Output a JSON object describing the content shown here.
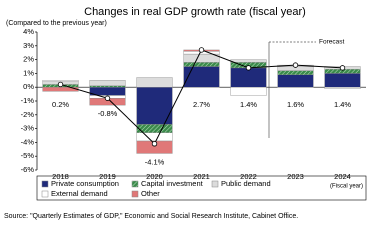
{
  "chart_data": {
    "type": "stacked-bar-line",
    "title": "Changes in real GDP growth rate (fiscal year)",
    "subtitle": "(Compared to the previous year)",
    "x_label": "(Fiscal year)",
    "source": "Source: \"Quarterly Estimates of GDP,\" Economic and Social Research Institute, Cabinet Office.",
    "annotation": "Forecast",
    "categories": [
      "2018",
      "2019",
      "2020",
      "2021",
      "2022",
      "2023",
      "2024"
    ],
    "series": [
      {
        "name": "Private consumption",
        "color": "#1f2a7a",
        "values": [
          0.0,
          -0.6,
          -2.7,
          1.5,
          1.4,
          0.9,
          1.0
        ]
      },
      {
        "name": "Capital investment",
        "color": "#3a8a4a",
        "values": [
          0.2,
          0.1,
          -0.6,
          0.3,
          0.4,
          0.3,
          0.3
        ]
      },
      {
        "name": "Public demand",
        "color": "#dcdcdc",
        "values": [
          0.2,
          0.4,
          0.7,
          0.6,
          0.2,
          0.3,
          0.2
        ]
      },
      {
        "name": "External demand",
        "color": "#ffffff",
        "values": [
          0.1,
          -0.2,
          -0.6,
          0.2,
          -0.6,
          0.1,
          -0.1
        ]
      },
      {
        "name": "Other",
        "color": "#e07878",
        "values": [
          -0.3,
          -0.5,
          -0.9,
          0.1,
          0.0,
          0.0,
          0.0
        ]
      }
    ],
    "line": {
      "color": "#000000",
      "values": [
        0.2,
        -0.8,
        -4.1,
        2.7,
        1.4,
        1.6,
        1.4
      ],
      "value_labels": [
        "0.2%",
        "-0.8%",
        "-4.1%",
        "2.7%",
        "1.4%",
        "1.6%",
        "1.4%"
      ]
    },
    "ylim": [
      -6,
      4
    ],
    "yticks": [
      {
        "value": 4,
        "label": "4%"
      },
      {
        "value": 3,
        "label": "3%"
      },
      {
        "value": 2,
        "label": "2%"
      },
      {
        "value": 1,
        "label": "1%"
      },
      {
        "value": 0,
        "label": "0%"
      },
      {
        "value": -1,
        "label": "-1%"
      },
      {
        "value": -2,
        "label": "-2%"
      },
      {
        "value": -3,
        "label": "-3%"
      },
      {
        "value": -4,
        "label": "-4%"
      },
      {
        "value": -5,
        "label": "-5%"
      },
      {
        "value": -6,
        "label": "-6%"
      }
    ]
  }
}
